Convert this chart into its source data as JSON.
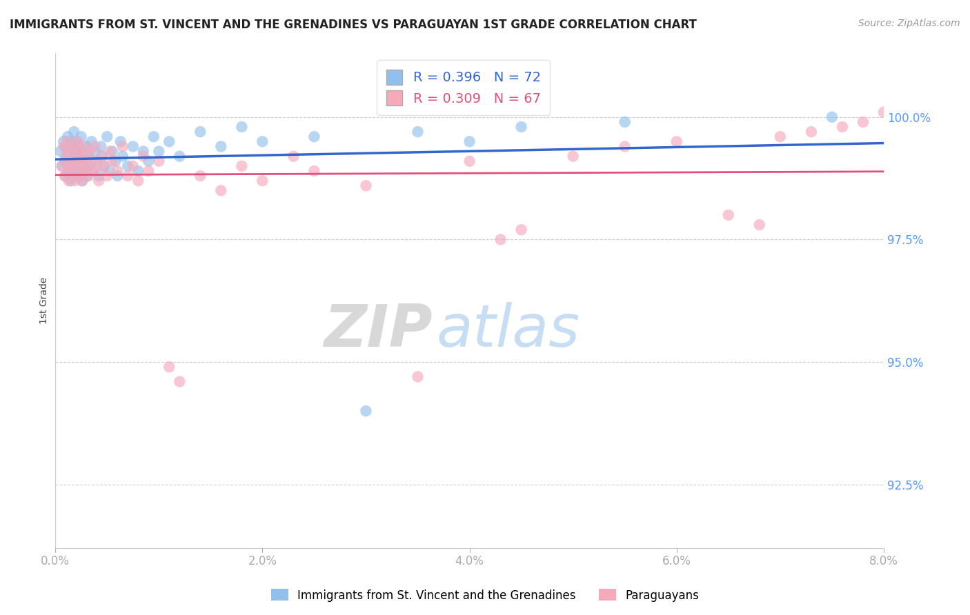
{
  "title": "IMMIGRANTS FROM ST. VINCENT AND THE GRENADINES VS PARAGUAYAN 1ST GRADE CORRELATION CHART",
  "source_text": "Source: ZipAtlas.com",
  "ylabel": "1st Grade",
  "x_ticklabels": [
    "0.0%",
    "2.0%",
    "4.0%",
    "6.0%",
    "8.0%"
  ],
  "x_ticks": [
    0.0,
    2.0,
    4.0,
    6.0,
    8.0
  ],
  "y_ticklabels": [
    "92.5%",
    "95.0%",
    "97.5%",
    "100.0%"
  ],
  "y_ticks": [
    92.5,
    95.0,
    97.5,
    100.0
  ],
  "xlim": [
    0.0,
    8.0
  ],
  "ylim": [
    91.2,
    101.3
  ],
  "blue_R": 0.396,
  "blue_N": 72,
  "pink_R": 0.309,
  "pink_N": 67,
  "blue_color": "#92C0EC",
  "pink_color": "#F5AABC",
  "blue_line_color": "#3366CC",
  "pink_line_color": "#E0507A",
  "legend_label_blue": "Immigrants from St. Vincent and the Grenadines",
  "legend_label_pink": "Paraguayans",
  "watermark_zip": "ZIP",
  "watermark_atlas": "atlas",
  "blue_x": [
    0.05,
    0.07,
    0.08,
    0.09,
    0.1,
    0.1,
    0.11,
    0.12,
    0.13,
    0.13,
    0.14,
    0.15,
    0.15,
    0.16,
    0.17,
    0.17,
    0.18,
    0.18,
    0.19,
    0.2,
    0.2,
    0.21,
    0.22,
    0.22,
    0.23,
    0.24,
    0.25,
    0.25,
    0.26,
    0.27,
    0.28,
    0.29,
    0.3,
    0.3,
    0.31,
    0.32,
    0.33,
    0.35,
    0.37,
    0.38,
    0.4,
    0.42,
    0.44,
    0.45,
    0.47,
    0.5,
    0.52,
    0.55,
    0.58,
    0.6,
    0.63,
    0.65,
    0.7,
    0.75,
    0.8,
    0.85,
    0.9,
    0.95,
    1.0,
    1.1,
    1.2,
    1.4,
    1.6,
    1.8,
    2.0,
    2.5,
    3.0,
    3.5,
    4.0,
    4.5,
    5.5,
    7.5
  ],
  "blue_y": [
    99.3,
    99.0,
    99.5,
    99.1,
    99.4,
    98.8,
    99.2,
    99.6,
    98.9,
    99.3,
    99.0,
    99.5,
    98.7,
    99.1,
    99.4,
    98.9,
    99.2,
    99.7,
    98.8,
    99.3,
    99.0,
    99.5,
    98.9,
    99.2,
    99.4,
    98.8,
    99.1,
    99.6,
    98.7,
    99.3,
    99.0,
    98.9,
    99.4,
    99.1,
    98.8,
    99.2,
    99.0,
    99.5,
    98.9,
    99.3,
    99.1,
    98.8,
    99.4,
    99.2,
    99.0,
    99.6,
    98.9,
    99.3,
    99.1,
    98.8,
    99.5,
    99.2,
    99.0,
    99.4,
    98.9,
    99.3,
    99.1,
    99.6,
    99.3,
    99.5,
    99.2,
    99.7,
    99.4,
    99.8,
    99.5,
    99.6,
    94.0,
    99.7,
    99.5,
    99.8,
    99.9,
    100.0
  ],
  "pink_x": [
    0.06,
    0.08,
    0.09,
    0.1,
    0.11,
    0.12,
    0.13,
    0.14,
    0.15,
    0.16,
    0.17,
    0.18,
    0.19,
    0.2,
    0.21,
    0.22,
    0.23,
    0.24,
    0.25,
    0.26,
    0.27,
    0.28,
    0.29,
    0.3,
    0.32,
    0.33,
    0.35,
    0.37,
    0.38,
    0.4,
    0.42,
    0.45,
    0.47,
    0.5,
    0.53,
    0.55,
    0.6,
    0.65,
    0.7,
    0.75,
    0.8,
    0.85,
    0.9,
    1.0,
    1.1,
    1.2,
    1.4,
    1.6,
    1.8,
    2.0,
    2.3,
    2.5,
    3.0,
    3.5,
    4.0,
    4.3,
    4.5,
    5.0,
    5.5,
    6.0,
    7.0,
    7.3,
    7.6,
    7.8,
    8.0,
    6.5,
    6.8
  ],
  "pink_y": [
    99.0,
    99.4,
    98.8,
    99.2,
    99.5,
    99.0,
    98.7,
    99.3,
    99.1,
    98.9,
    99.4,
    99.0,
    98.7,
    99.2,
    99.5,
    98.8,
    99.1,
    99.3,
    99.0,
    98.7,
    99.4,
    98.9,
    99.2,
    99.0,
    98.8,
    99.3,
    99.1,
    98.9,
    99.4,
    99.0,
    98.7,
    99.2,
    99.0,
    98.8,
    99.3,
    99.1,
    98.9,
    99.4,
    98.8,
    99.0,
    98.7,
    99.2,
    98.9,
    99.1,
    94.9,
    94.6,
    98.8,
    98.5,
    99.0,
    98.7,
    99.2,
    98.9,
    98.6,
    94.7,
    99.1,
    97.5,
    97.7,
    99.2,
    99.4,
    99.5,
    99.6,
    99.7,
    99.8,
    99.9,
    100.1,
    98.0,
    97.8
  ]
}
